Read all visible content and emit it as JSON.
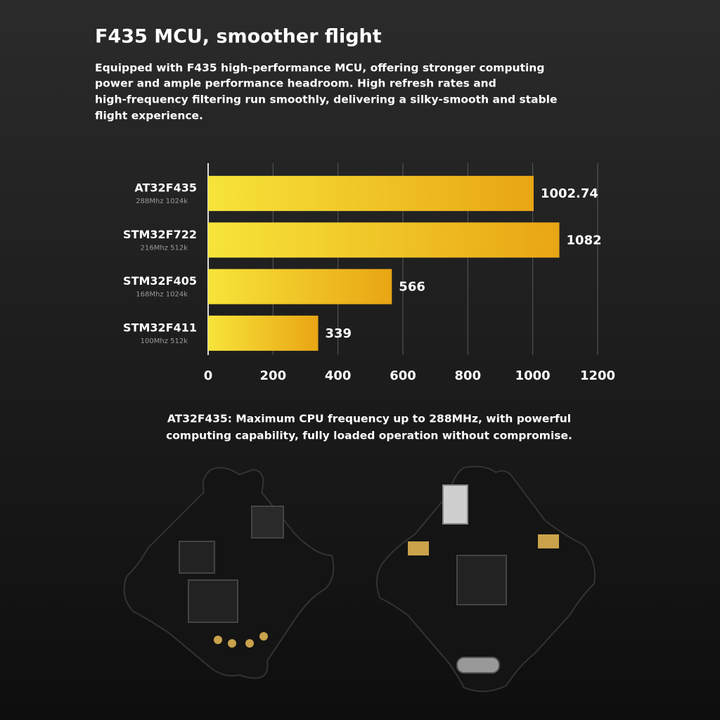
{
  "header": {
    "title": "F435 MCU, smoother flight",
    "description": [
      "Equipped with F435 high-performance MCU, offering stronger computing",
      "power and ample performance headroom. High refresh rates and",
      "high-frequency filtering run smoothly, delivering a silky-smooth and stable",
      "flight experience."
    ]
  },
  "chart_data": {
    "type": "hbar",
    "categories": [
      "AT32F435",
      "STM32F722",
      "STM32F405",
      "STM32F411"
    ],
    "category_details": [
      "288Mhz 1024k",
      "216Mhz 512k",
      "168Mhz 1024k",
      "100Mhz 512k"
    ],
    "values": [
      1002.74,
      1082,
      566,
      339
    ],
    "gradient": [
      "#f7e43a",
      "#e9a514"
    ],
    "xlim": [
      0,
      1200
    ],
    "xticks": [
      0,
      200,
      400,
      600,
      800,
      1000,
      1200
    ],
    "grid": true
  },
  "caption": [
    "AT32F435: Maximum CPU frequency up to 288MHz, with powerful",
    "computing capability, fully loaded operation without compromise."
  ]
}
